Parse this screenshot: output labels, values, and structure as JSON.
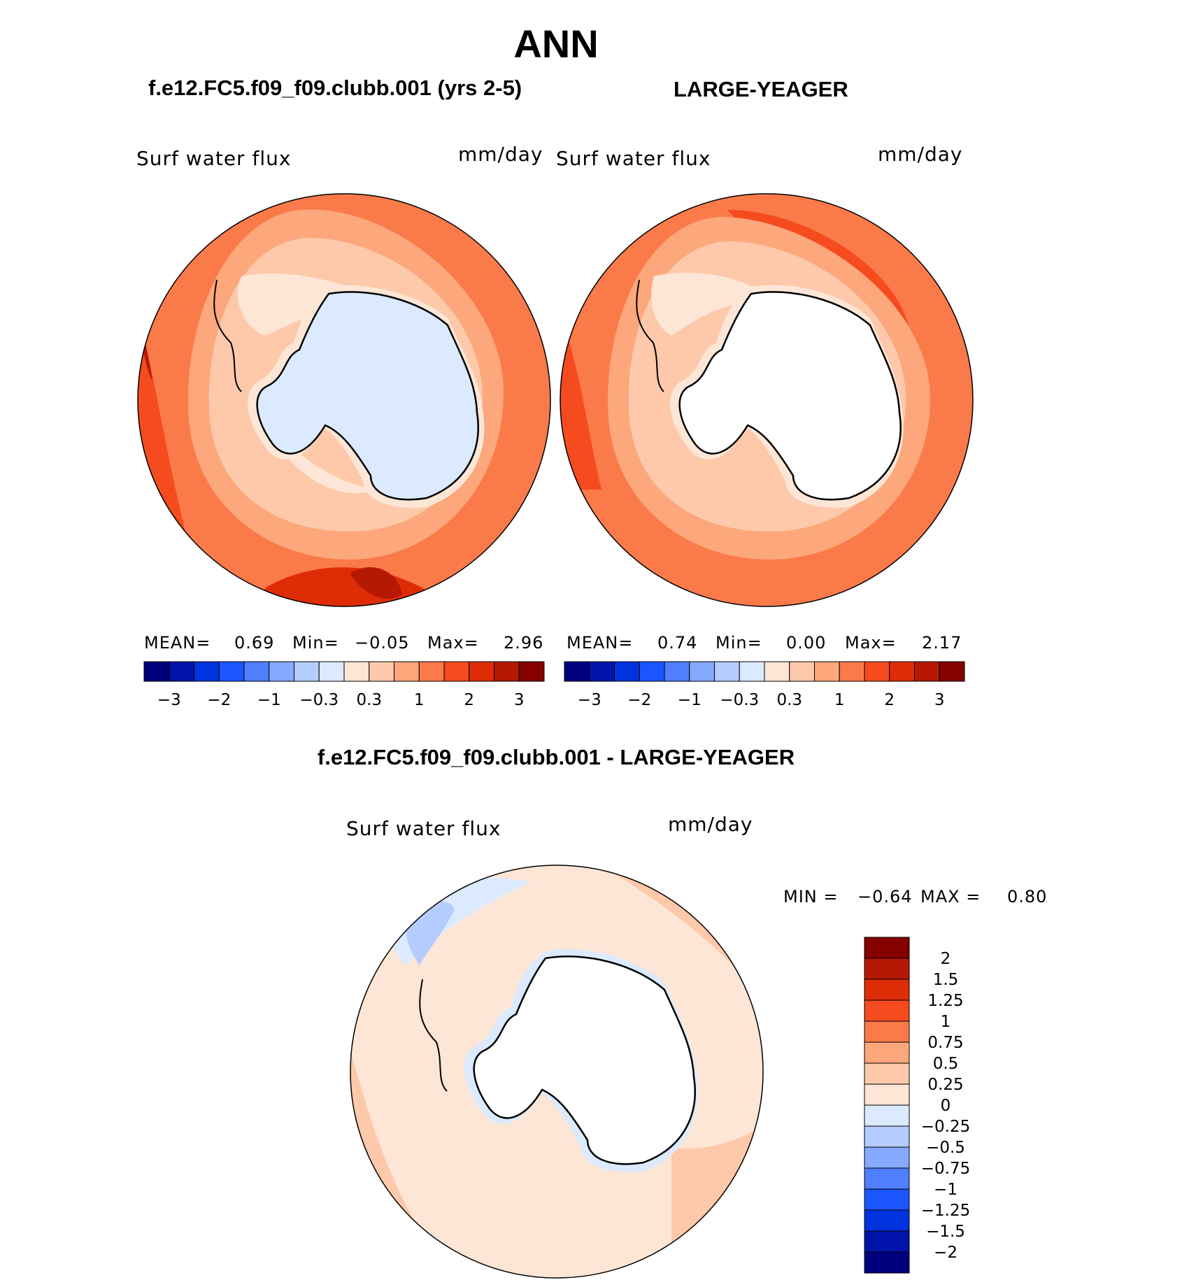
{
  "figure": {
    "season": "ANN",
    "variable": "Surf water flux",
    "units": "mm/day"
  },
  "panels": {
    "left": {
      "case": "f.e12.FC5.f09_f09.clubb.001 (yrs 2-5)",
      "variable": "Surf water flux",
      "units": "mm/day",
      "mean_label": "MEAN=",
      "mean": "0.69",
      "min_label": "Min=",
      "min": "−0.05",
      "max_label": "Max=",
      "max": "2.96"
    },
    "right": {
      "case": "LARGE-YEAGER",
      "variable": "Surf water flux",
      "units": "mm/day",
      "mean_label": "MEAN=",
      "mean": "0.74",
      "min_label": "Min=",
      "min": "0.00",
      "max_label": "Max=",
      "max": "2.17"
    },
    "diff": {
      "title": "f.e12.FC5.f09_f09.clubb.001 - LARGE-YEAGER",
      "variable": "Surf water flux",
      "units": "mm/day",
      "min_label": "MIN =",
      "min": "−0.64",
      "max_label": "MAX =",
      "max": "0.80"
    }
  },
  "colorbar_abs": {
    "colors": [
      "#00007f",
      "#0014a9",
      "#0033dd",
      "#1a55ff",
      "#4f7fff",
      "#85a9ff",
      "#b5ccff",
      "#dbeaff",
      "#fde6d6",
      "#fdc9aa",
      "#fca77c",
      "#fb7a4a",
      "#f54b1f",
      "#de2d06",
      "#b51903",
      "#850100"
    ],
    "tick_labels": [
      "−3",
      "−2",
      "−1",
      "−0.3",
      "0.3",
      "1",
      "2",
      "3"
    ]
  },
  "colorbar_diff": {
    "colors": [
      "#850100",
      "#b51903",
      "#de2d06",
      "#f54b1f",
      "#fb7a4a",
      "#fca77c",
      "#fdc9aa",
      "#fde6d6",
      "#dbeaff",
      "#b5ccff",
      "#85a9ff",
      "#4f7fff",
      "#1a55ff",
      "#0033dd",
      "#0014a9",
      "#00007f"
    ],
    "tick_labels": [
      "2",
      "1.5",
      "1.25",
      "1",
      "0.75",
      "0.5",
      "0.25",
      "0",
      "−0.25",
      "−0.5",
      "−0.75",
      "−1",
      "−1.25",
      "−1.5",
      "−2"
    ]
  }
}
